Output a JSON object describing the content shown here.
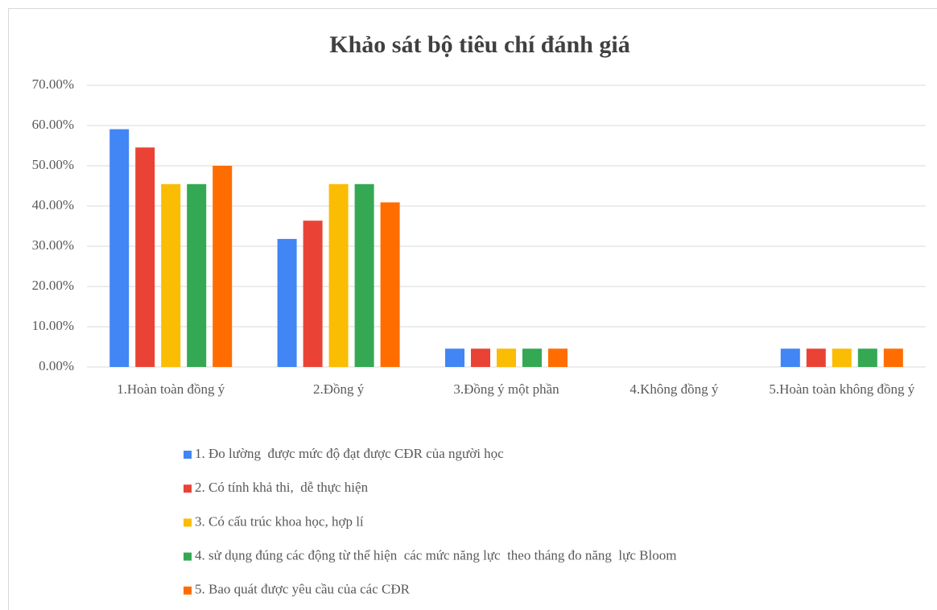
{
  "chart_data": {
    "type": "bar",
    "title": "Khảo sát bộ tiêu chí đánh giá",
    "categories": [
      "1.Hoàn toàn đồng ý",
      "2.Đồng ý",
      "3.Đồng ý một phần",
      "4.Không đồng ý",
      "5.Hoàn toàn không đồng ý"
    ],
    "series": [
      {
        "name": "1. Đo lường  được mức độ đạt được CĐR của người học",
        "color": "#4285f4",
        "values": [
          59.09,
          31.82,
          4.55,
          0,
          4.55
        ]
      },
      {
        "name": "2. Có tính khả thi,  dễ thực hiện",
        "color": "#ea4335",
        "values": [
          54.55,
          36.36,
          4.55,
          0,
          4.55
        ]
      },
      {
        "name": "3. Có cấu trúc khoa học, hợp lí",
        "color": "#fbbc04",
        "values": [
          45.45,
          45.45,
          4.55,
          0,
          4.55
        ]
      },
      {
        "name": "4. sử dụng đúng các động từ thể hiện  các mức năng lực  theo tháng đo năng  lực Bloom",
        "color": "#34a853",
        "values": [
          45.45,
          45.45,
          4.55,
          0,
          4.55
        ]
      },
      {
        "name": "5. Bao quát được yêu cầu của các CĐR",
        "color": "#ff6d01",
        "values": [
          50,
          40.91,
          4.55,
          0,
          4.55
        ]
      }
    ],
    "ylim": [
      0,
      70
    ],
    "yticks": [
      {
        "value": 0,
        "label": "0.00%"
      },
      {
        "value": 10,
        "label": "10.00%"
      },
      {
        "value": 20,
        "label": "20.00%"
      },
      {
        "value": 30,
        "label": "30.00%"
      },
      {
        "value": 40,
        "label": "40.00%"
      },
      {
        "value": 50,
        "label": "50.00%"
      },
      {
        "value": 60,
        "label": "60.00%"
      },
      {
        "value": 70,
        "label": "70.00%"
      }
    ],
    "grid": true,
    "legend": "bottom"
  }
}
